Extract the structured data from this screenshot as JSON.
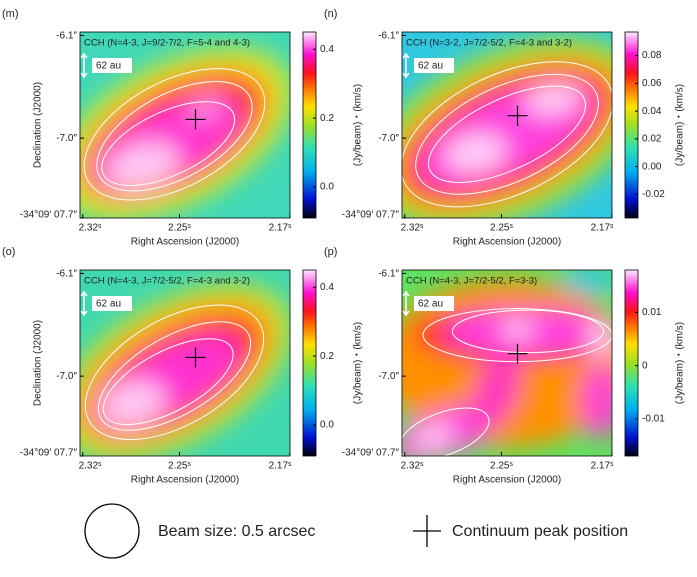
{
  "chart_data": [
    {
      "type": "map",
      "panel": "(m)",
      "annotation": "CCH (N=4-3, J=9/2-7/2, F=5-4 and 4-3)",
      "scale_label": "62 au",
      "xlabel": "Right Ascension (J2000)",
      "ylabel": "Declination (J2000)",
      "zlabel": "(Jy/beam)・(km/s)",
      "xlim": [
        2.322,
        2.17
      ],
      "xticks": [
        {
          "value": 2.32,
          "label": "2.32ˢ"
        },
        {
          "value": 2.25,
          "label": "2.25ˢ"
        },
        {
          "value": 2.17,
          "label": "2.17ˢ"
        }
      ],
      "ylim": [
        -7.7,
        -6.07
      ],
      "yticks": [
        {
          "value": -6.1,
          "label": "-6.1″"
        },
        {
          "value": -7.0,
          "label": "-7.0″"
        },
        {
          "value": -7.7,
          "label": "-34°09′ 07.7″"
        }
      ],
      "zlim": [
        -0.09,
        0.45
      ],
      "zticks": [
        {
          "value": 0,
          "label": "0.0"
        },
        0.2,
        0.4
      ]
    },
    {
      "type": "map",
      "panel": "(n)",
      "annotation": "CCH (N=3-2, J=7/2-5/2, F=4-3 and 3-2)",
      "scale_label": "62 au",
      "xlabel": "Right Ascension (J2000)",
      "zlabel": "(Jy/beam)・(km/s)",
      "xlim": [
        2.322,
        2.17
      ],
      "xticks": [
        {
          "value": 2.32,
          "label": "2.32ˢ"
        },
        {
          "value": 2.25,
          "label": "2.25ˢ"
        },
        {
          "value": 2.17,
          "label": "2.17ˢ"
        }
      ],
      "ylim": [
        -7.7,
        -6.07
      ],
      "yticks": [
        {
          "value": -6.1,
          "label": "-6.1″"
        },
        {
          "value": -7.0,
          "label": "-7.0″"
        },
        {
          "value": -7.7,
          "label": "-34°09′ 07.7″"
        }
      ],
      "zlim": [
        -0.037,
        0.097
      ],
      "zticks": [
        {
          "value": -0.02,
          "label": "-0.02"
        },
        {
          "value": 0,
          "label": "0.00"
        },
        {
          "value": 0.02,
          "label": "0.02"
        },
        {
          "value": 0.04,
          "label": "0.04"
        },
        {
          "value": 0.06,
          "label": "0.06"
        },
        {
          "value": 0.08,
          "label": "0.08"
        }
      ]
    },
    {
      "type": "map",
      "panel": "(o)",
      "annotation": "CCH (N=4-3, J=7/2-5/2, F=4-3 and 3-2)",
      "scale_label": "62 au",
      "xlabel": "Right Ascension (J2000)",
      "ylabel": "Declination (J2000)",
      "zlabel": "(Jy/beam)・(km/s)",
      "xlim": [
        2.322,
        2.17
      ],
      "xticks": [
        {
          "value": 2.32,
          "label": "2.32ˢ"
        },
        {
          "value": 2.25,
          "label": "2.25ˢ"
        },
        {
          "value": 2.17,
          "label": "2.17ˢ"
        }
      ],
      "ylim": [
        -7.7,
        -6.07
      ],
      "yticks": [
        {
          "value": -6.1,
          "label": "-6.1″"
        },
        {
          "value": -7.0,
          "label": "-7.0″"
        },
        {
          "value": -7.7,
          "label": "-34°09′ 07.7″"
        }
      ],
      "zlim": [
        -0.09,
        0.45
      ],
      "zticks": [
        {
          "value": 0,
          "label": "0.0"
        },
        0.2,
        0.4
      ]
    },
    {
      "type": "map",
      "panel": "(p)",
      "annotation": "CCH (N=4-3, J=7/2-5/2, F=3-3)",
      "scale_label": "62 au",
      "xlabel": "Right Ascension (J2000)",
      "zlabel": "(Jy/beam)・(km/s)",
      "xlim": [
        2.322,
        2.17
      ],
      "xticks": [
        {
          "value": 2.32,
          "label": "2.32ˢ"
        },
        {
          "value": 2.25,
          "label": "2.25ˢ"
        },
        {
          "value": 2.17,
          "label": "2.17ˢ"
        }
      ],
      "ylim": [
        -7.7,
        -6.07
      ],
      "yticks": [
        {
          "value": -6.1,
          "label": "-6.1″"
        },
        {
          "value": -7.0,
          "label": "-7.0″"
        },
        {
          "value": -7.7,
          "label": "-34°09′ 07.7″"
        }
      ],
      "zlim": [
        -0.017,
        0.018
      ],
      "zticks": [
        {
          "value": -0.01,
          "label": "-0.01"
        },
        0,
        0.01
      ]
    }
  ],
  "legend": {
    "beam": "Beam size: 0.5 arcsec",
    "peak": "Continuum peak position"
  }
}
